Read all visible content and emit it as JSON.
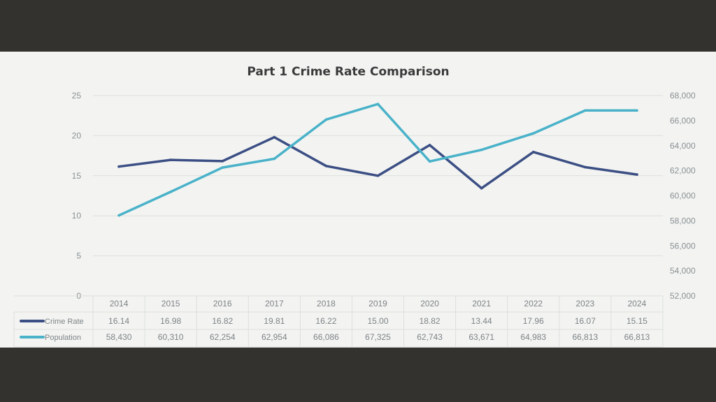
{
  "chart_data": {
    "type": "line",
    "title": "Part 1 Crime Rate Comparison",
    "categories": [
      "2014",
      "2015",
      "2016",
      "2017",
      "2018",
      "2019",
      "2020",
      "2021",
      "2022",
      "2023",
      "2024"
    ],
    "series": [
      {
        "name": "Crime Rate",
        "axis": "left",
        "color": "#3c4f84",
        "values": [
          16.14,
          16.98,
          16.82,
          19.81,
          16.22,
          15.0,
          18.82,
          13.44,
          17.96,
          16.07,
          15.15
        ],
        "labels": [
          "16.14",
          "16.98",
          "16.82",
          "19.81",
          "16.22",
          "15.00",
          "18.82",
          "13.44",
          "17.96",
          "16.07",
          "15.15"
        ]
      },
      {
        "name": "Population",
        "axis": "right",
        "color": "#49b2c9",
        "values": [
          58430,
          60310,
          62254,
          62954,
          66086,
          67325,
          62743,
          63671,
          64983,
          66813,
          66813
        ],
        "labels": [
          "58,430",
          "60,310",
          "62,254",
          "62,954",
          "66,086",
          "67,325",
          "62,743",
          "63,671",
          "64,983",
          "66,813",
          "66,813"
        ]
      }
    ],
    "y_left": {
      "ylim": [
        0,
        25
      ],
      "ticks": [
        "0",
        "5",
        "10",
        "15",
        "20",
        "25"
      ]
    },
    "y_right": {
      "ylim": [
        52000,
        68000
      ],
      "ticks": [
        "52,000",
        "54,000",
        "56,000",
        "58,000",
        "60,000",
        "62,000",
        "64,000",
        "66,000",
        "68,000"
      ]
    },
    "grid": true,
    "legend": "data-table"
  }
}
